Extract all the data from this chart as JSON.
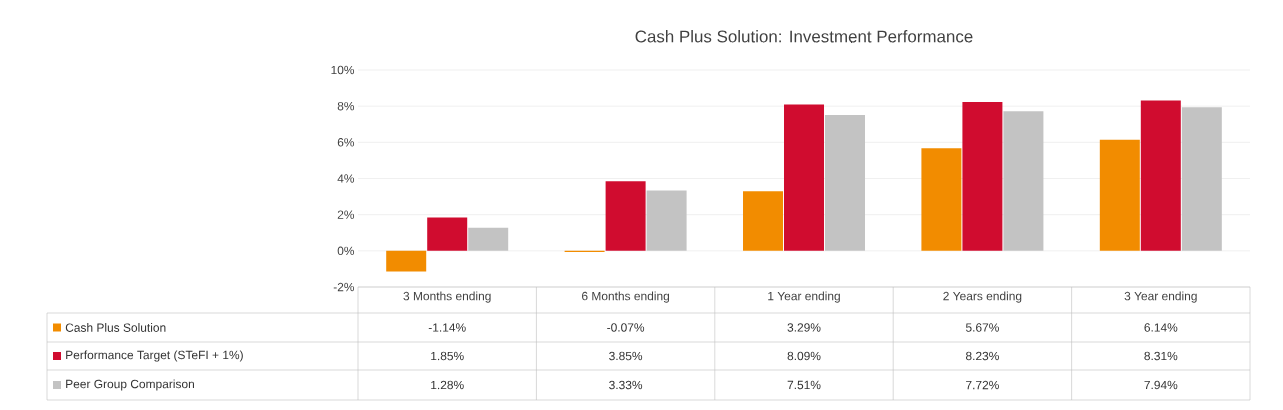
{
  "chart_data": {
    "type": "bar",
    "title": "Cash Plus Solution: Investment Performance",
    "categories": [
      "3 Months ending",
      "6 Months ending",
      "1 Year ending",
      "2 Years ending",
      "3 Year ending"
    ],
    "series": [
      {
        "name": "Cash Plus Solution",
        "color": "#f28c00",
        "values": [
          -1.14,
          -0.07,
          3.29,
          5.67,
          6.14
        ],
        "value_labels": [
          "-1.14%",
          "-0.07%",
          "3.29%",
          "5.67%",
          "6.14%"
        ]
      },
      {
        "name": "Performance Target (STeFI + 1%)",
        "color": "#d00c2f",
        "values": [
          1.85,
          3.85,
          8.09,
          8.23,
          8.31
        ],
        "value_labels": [
          "1.85%",
          "3.85%",
          "8.09%",
          "8.23%",
          "8.31%"
        ]
      },
      {
        "name": "Peer Group Comparison",
        "color": "#c3c3c3",
        "values": [
          1.28,
          3.33,
          7.51,
          7.72,
          7.94
        ],
        "value_labels": [
          "1.28%",
          "3.33%",
          "7.51%",
          "7.72%",
          "7.94%"
        ]
      }
    ],
    "ylim": [
      -2,
      10
    ],
    "yticks": [
      {
        "value": -2,
        "label": "-2%"
      },
      {
        "value": 0,
        "label": "0%"
      },
      {
        "value": 2,
        "label": "2%"
      },
      {
        "value": 4,
        "label": "4%"
      },
      {
        "value": 6,
        "label": "6%"
      },
      {
        "value": 8,
        "label": "8%"
      },
      {
        "value": 10,
        "label": "10%"
      }
    ],
    "grid": "y",
    "legend": "bottom"
  }
}
